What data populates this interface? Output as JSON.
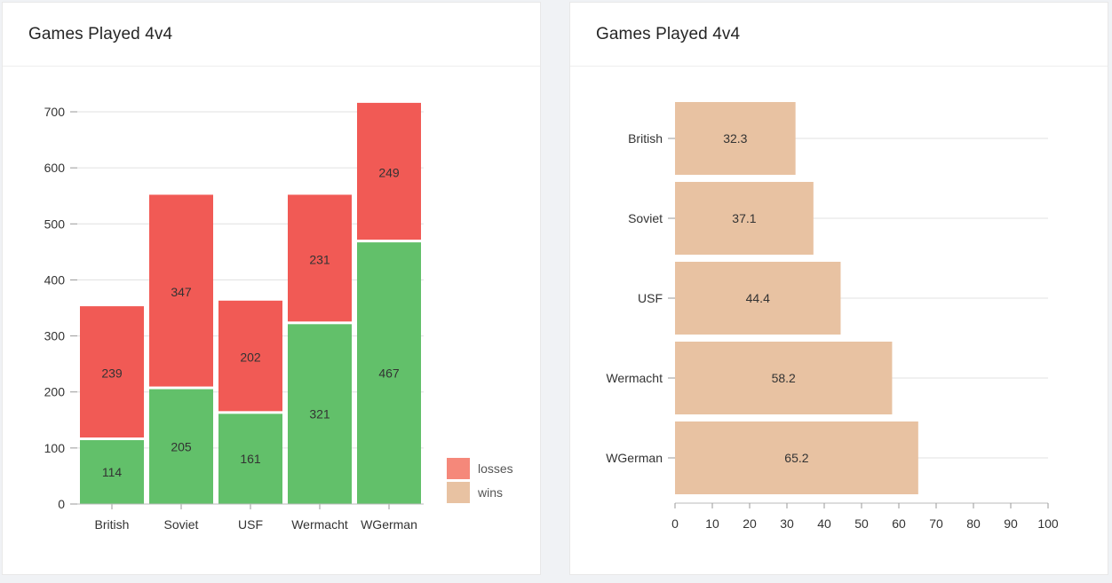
{
  "left_card": {
    "title": "Games Played 4v4"
  },
  "right_card": {
    "title": "Games Played 4v4"
  },
  "colors": {
    "wins_bar": "#62c06a",
    "losses_bar": "#f15a55",
    "losses_legend": "#f5887a",
    "wins_legend": "#e8c2a2",
    "horizontal_bar": "#e8c2a2",
    "gridline": "#e0e0e0",
    "axis_text": "#333333"
  },
  "chart_data": [
    {
      "type": "bar",
      "stacked": true,
      "title": "Games Played 4v4",
      "categories": [
        "British",
        "Soviet",
        "USF",
        "Wermacht",
        "WGerman"
      ],
      "series": [
        {
          "name": "wins",
          "values": [
            114,
            205,
            161,
            321,
            467
          ]
        },
        {
          "name": "losses",
          "values": [
            239,
            347,
            202,
            231,
            249
          ]
        }
      ],
      "ylim": [
        0,
        700
      ],
      "yticks": [
        0,
        100,
        200,
        300,
        400,
        500,
        600,
        700
      ],
      "legend": [
        "losses",
        "wins"
      ],
      "legend_position": "bottom-right",
      "grid": true,
      "data_labels": true
    },
    {
      "type": "bar",
      "orientation": "horizontal",
      "title": "Games Played 4v4",
      "categories": [
        "British",
        "Soviet",
        "USF",
        "Wermacht",
        "WGerman"
      ],
      "values": [
        32.3,
        37.1,
        44.4,
        58.2,
        65.2
      ],
      "xlim": [
        0,
        100
      ],
      "xticks": [
        0,
        10,
        20,
        30,
        40,
        50,
        60,
        70,
        80,
        90,
        100
      ],
      "grid": true,
      "data_labels": true
    }
  ]
}
